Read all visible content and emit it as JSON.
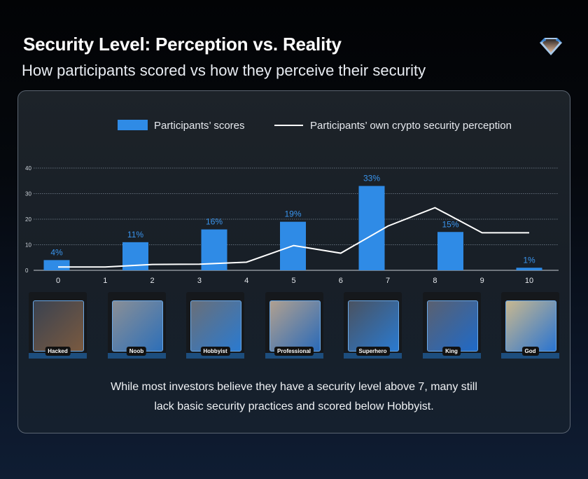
{
  "title": "Security Level: Perception vs. Reality",
  "subtitle": "How participants scored vs how they perceive their security",
  "logo_icon": "diamond-logo-icon",
  "legend": {
    "bars": "Participants’ scores",
    "line": "Participants’ own crypto security perception"
  },
  "colors": {
    "bars": "#2f8be6",
    "line": "#ffffff",
    "label": "#3a95ee"
  },
  "chart_data": {
    "type": "bar+line",
    "yticks": [
      0,
      10,
      20,
      30,
      40
    ],
    "ylim": [
      0,
      40
    ],
    "xticks": [
      "0",
      "1",
      "2",
      "3",
      "4",
      "5",
      "6",
      "7",
      "8",
      "9",
      "10"
    ],
    "grid": true,
    "legend_position": "top",
    "series": [
      {
        "name": "Participants’ scores",
        "type": "bar",
        "categories": [
          "Hacked",
          "Noob",
          "Hobbyist",
          "Professional",
          "Superhero",
          "King",
          "God"
        ],
        "values": [
          4,
          11,
          16,
          19,
          33,
          15,
          1
        ],
        "labels": [
          "4%",
          "11%",
          "16%",
          "19%",
          "33%",
          "15%",
          "1%"
        ]
      },
      {
        "name": "Participants’ own crypto security perception",
        "type": "line",
        "x": [
          0,
          1,
          2,
          3,
          4,
          5,
          6,
          7,
          8,
          9,
          10
        ],
        "values": [
          1.3,
          1.3,
          2.3,
          2.4,
          3.2,
          9.7,
          6.7,
          17.3,
          24.5,
          14.7,
          14.7
        ]
      }
    ]
  },
  "cards": [
    "Hacked",
    "Noob",
    "Hobbyist",
    "Professional",
    "Superhero",
    "King",
    "God"
  ],
  "caption": [
    "While most investors believe they have a security level above 7, many still",
    "lack basic security practices and scored below Hobbyist."
  ]
}
